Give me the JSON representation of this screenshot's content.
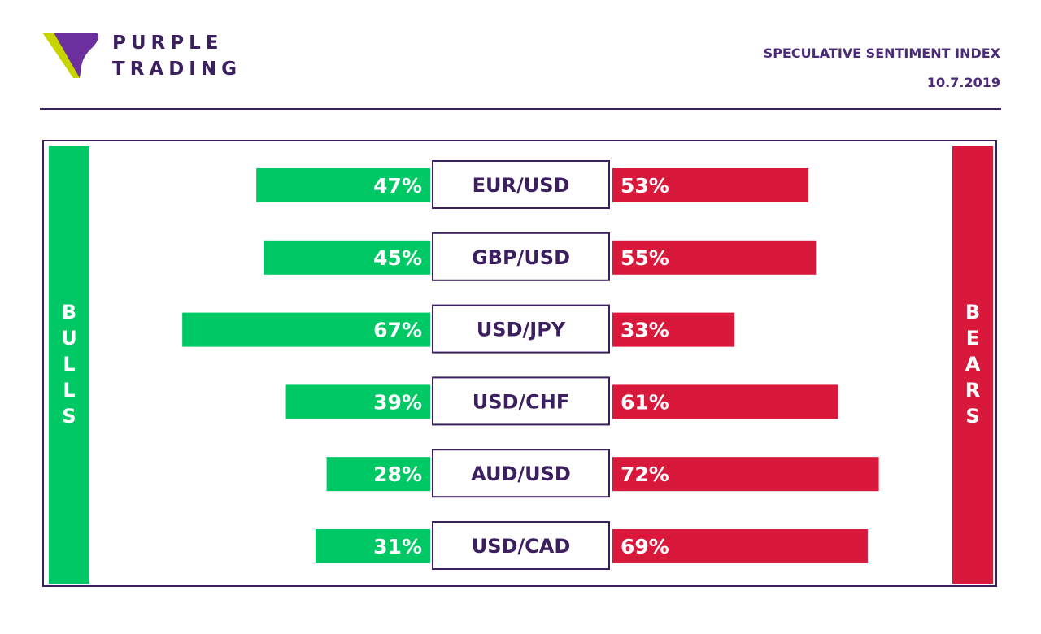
{
  "logo": {
    "line1": "PURPLE",
    "line2": "TRADING"
  },
  "header": {
    "title": "SPECULATIVE SENTIMENT INDEX",
    "date": "10.7.2019"
  },
  "sides": {
    "bulls": "BULLS",
    "bears": "BEARS"
  },
  "colors": {
    "bulls": "#00c865",
    "bears": "#d8193c",
    "accent": "#3b1f5e"
  },
  "chart_data": {
    "type": "bar",
    "categories": [
      "EUR/USD",
      "GBP/USD",
      "USD/JPY",
      "USD/CHF",
      "AUD/USD",
      "USD/CAD"
    ],
    "series": [
      {
        "name": "BULLS",
        "values": [
          47,
          45,
          67,
          39,
          28,
          31
        ],
        "labels": [
          "47%",
          "45%",
          "67%",
          "39%",
          "28%",
          "31%"
        ]
      },
      {
        "name": "BEARS",
        "values": [
          53,
          55,
          33,
          61,
          72,
          69
        ],
        "labels": [
          "53%",
          "55%",
          "33%",
          "61%",
          "72%",
          "69%"
        ]
      }
    ],
    "unit": "%"
  }
}
